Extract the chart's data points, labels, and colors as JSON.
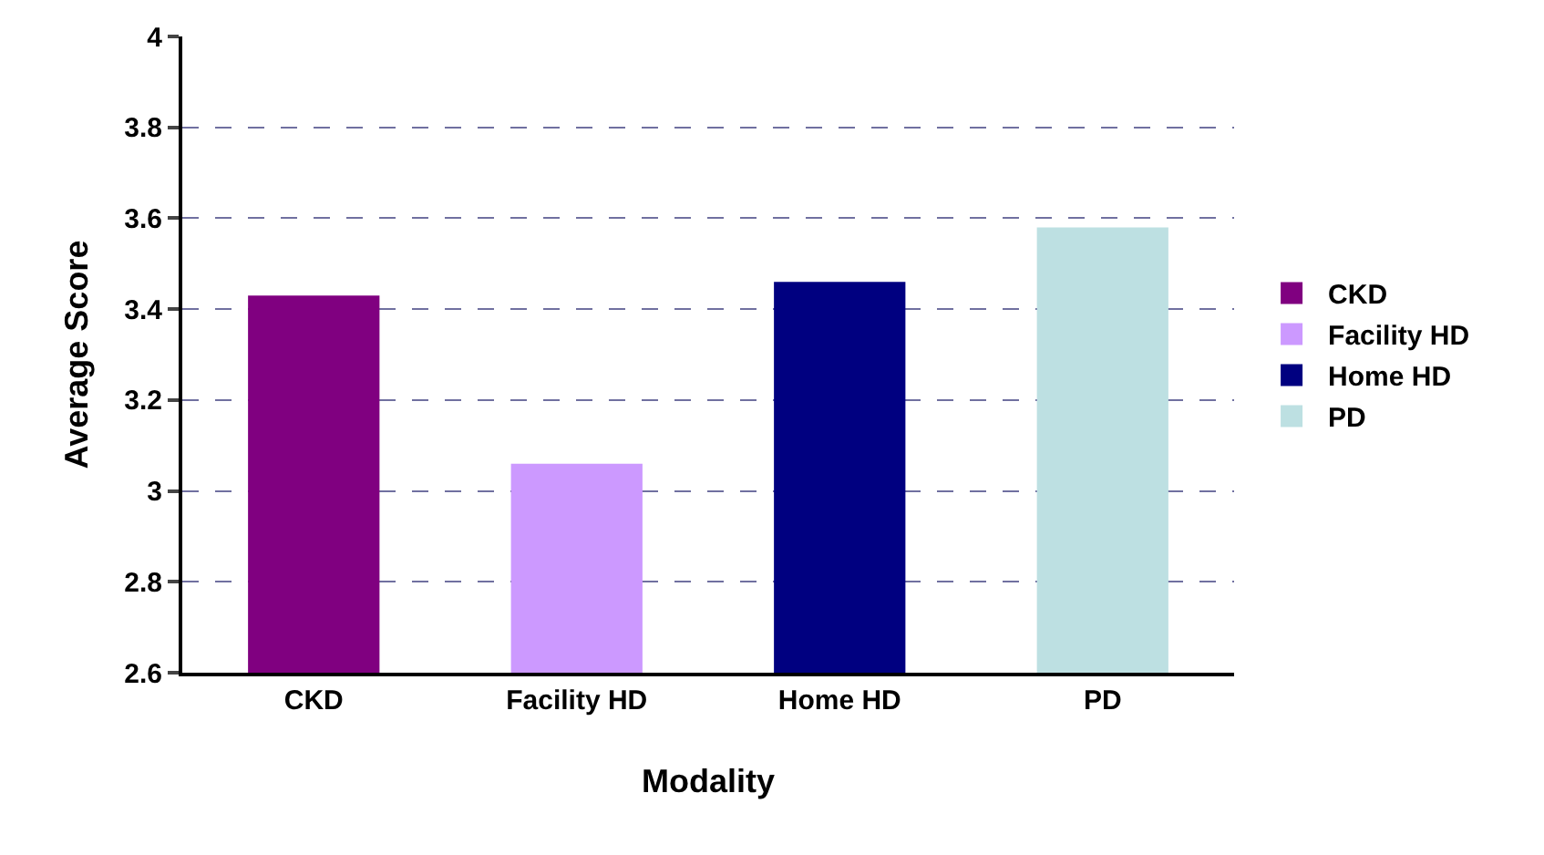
{
  "chart_data": {
    "type": "bar",
    "xlabel": "Modality",
    "ylabel": "Average Score",
    "categories": [
      "CKD",
      "Facility HD",
      "Home HD",
      "PD"
    ],
    "series": [
      {
        "name": "CKD",
        "color": "#800080",
        "values": [
          3.43,
          null,
          null,
          null
        ]
      },
      {
        "name": "Facility HD",
        "color": "#cc99ff",
        "values": [
          null,
          3.06,
          null,
          null
        ]
      },
      {
        "name": "Home HD",
        "color": "#000080",
        "values": [
          null,
          null,
          3.46,
          null
        ]
      },
      {
        "name": "PD",
        "color": "#bde0e2",
        "values": [
          null,
          null,
          null,
          3.58
        ]
      }
    ],
    "ylim": [
      2.6,
      4
    ],
    "yticks": [
      2.6,
      2.8,
      3,
      3.2,
      3.4,
      3.6,
      3.8,
      4
    ],
    "grid": "y",
    "legend": "right"
  }
}
